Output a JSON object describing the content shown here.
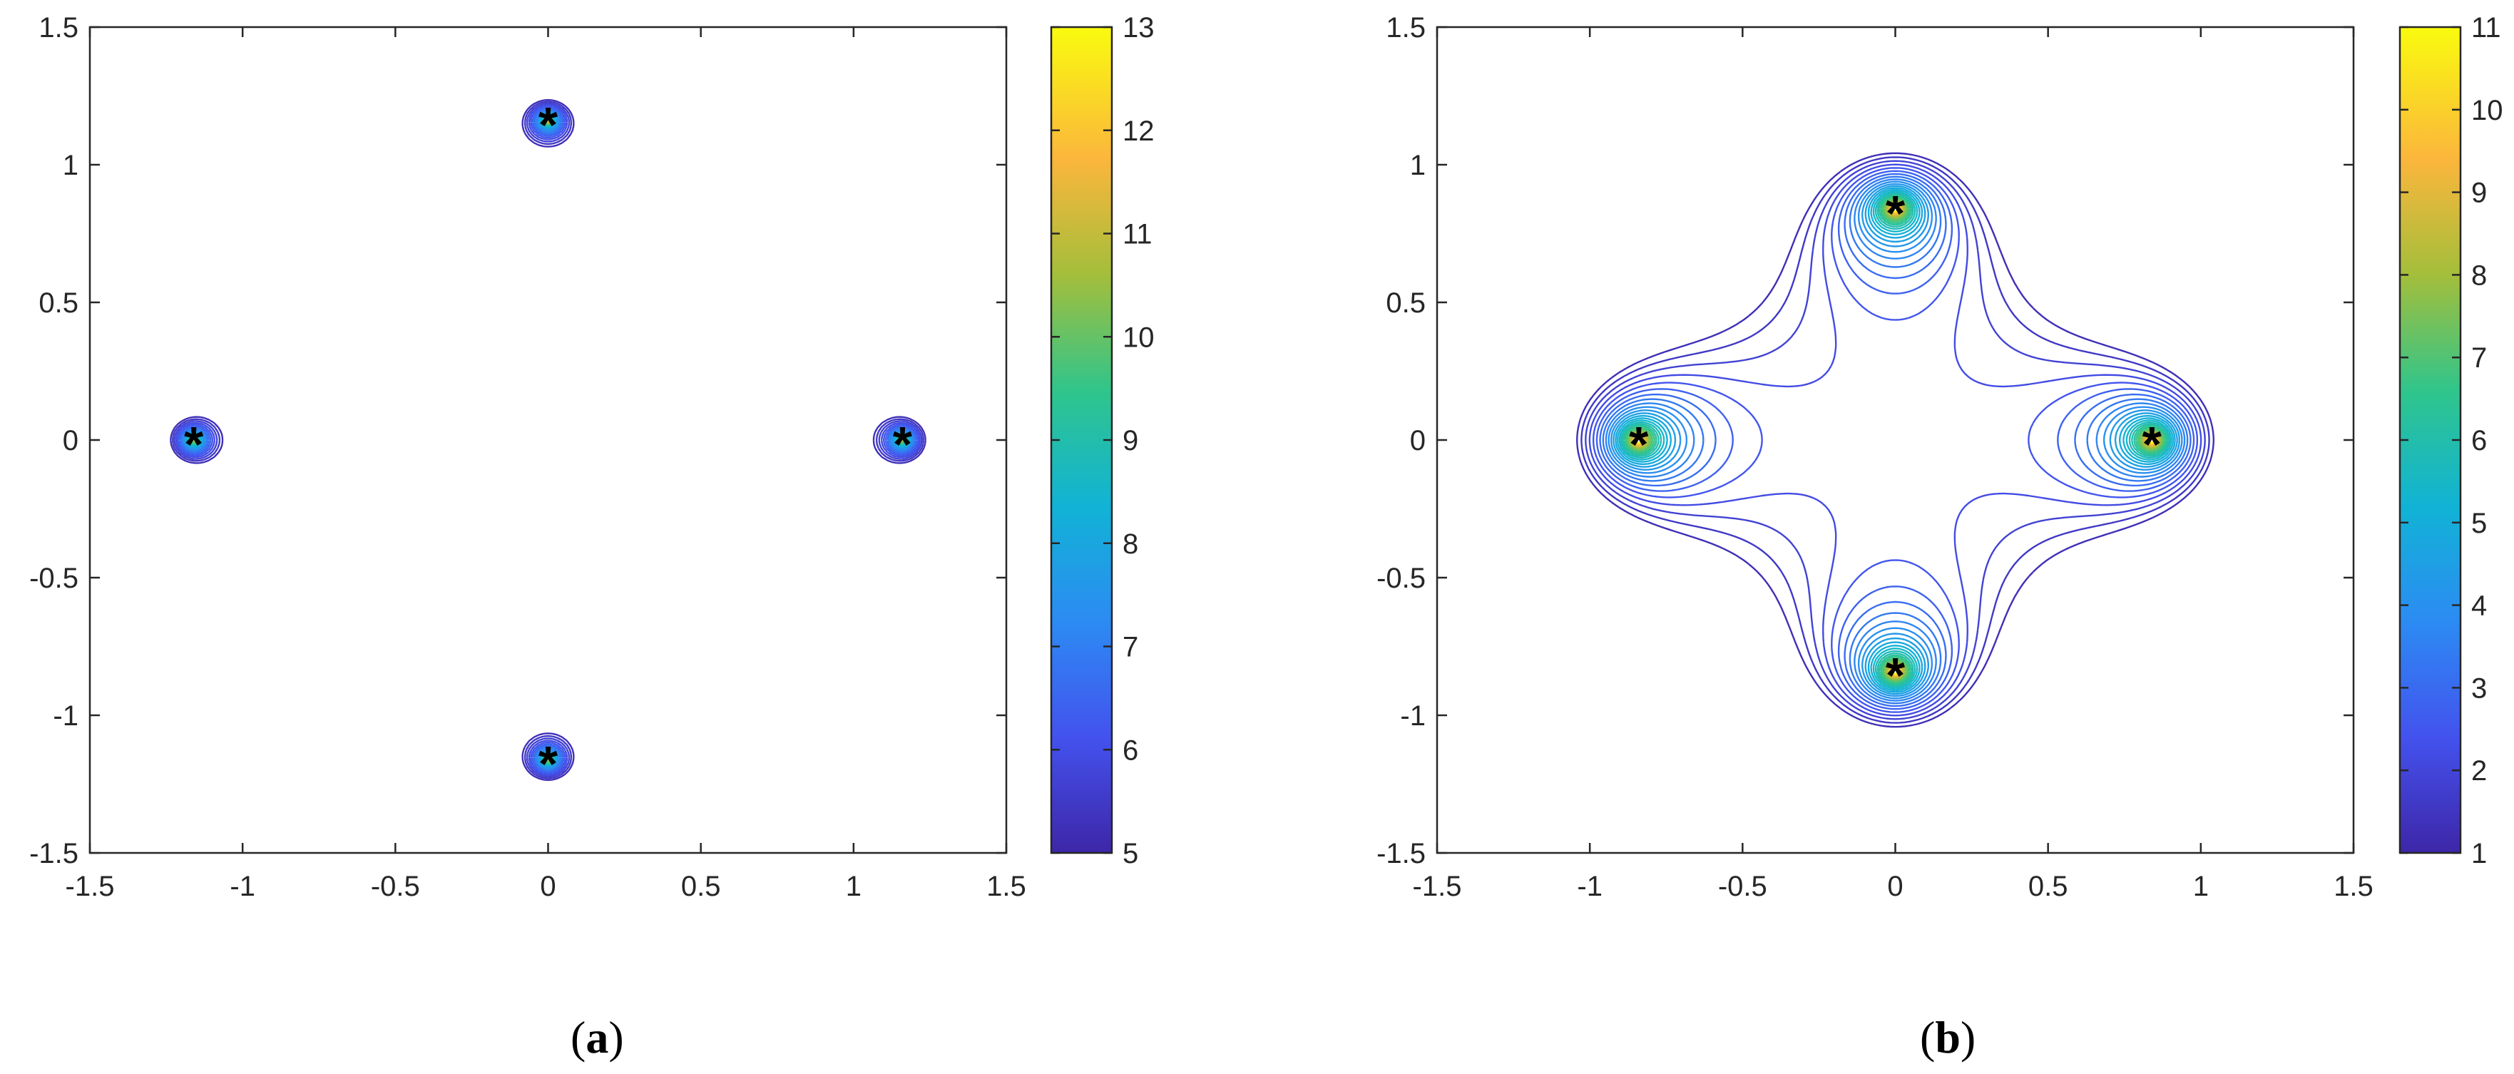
{
  "chart_data": [
    {
      "type": "contour",
      "caption": "a",
      "xlim": [
        -1.5,
        1.5
      ],
      "ylim": [
        -1.5,
        1.5
      ],
      "x_ticks": [
        "-1.5",
        "-1",
        "-0.5",
        "0",
        "0.5",
        "1",
        "1.5"
      ],
      "y_ticks": [
        "1.5",
        "1",
        "0.5",
        "0",
        "-0.5",
        "-1",
        "-1.5"
      ],
      "colorbar": {
        "range": [
          5,
          13
        ],
        "ticks": [
          "13",
          "12",
          "11",
          "10",
          "9",
          "8",
          "7",
          "6",
          "5"
        ]
      },
      "markers": [
        [
          0,
          1.16
        ],
        [
          0,
          -1.16
        ],
        [
          -1.16,
          0
        ],
        [
          1.16,
          0
        ]
      ],
      "marker_symbol": "*",
      "grid": false
    },
    {
      "type": "contour",
      "caption": "b",
      "xlim": [
        -1.5,
        1.5
      ],
      "ylim": [
        -1.5,
        1.5
      ],
      "x_ticks": [
        "-1.5",
        "-1",
        "-0.5",
        "0",
        "0.5",
        "1",
        "1.5"
      ],
      "y_ticks": [
        "1.5",
        "1",
        "0.5",
        "0",
        "-0.5",
        "-1",
        "-1.5"
      ],
      "colorbar": {
        "range": [
          1,
          11
        ],
        "ticks": [
          "11",
          "10",
          "9",
          "8",
          "7",
          "6",
          "5",
          "4",
          "3",
          "2",
          "1"
        ]
      },
      "markers": [
        [
          0,
          0.84
        ],
        [
          0,
          -0.84
        ],
        [
          -0.84,
          0
        ],
        [
          0.84,
          0
        ]
      ],
      "marker_symbol": "*",
      "grid": false
    }
  ]
}
